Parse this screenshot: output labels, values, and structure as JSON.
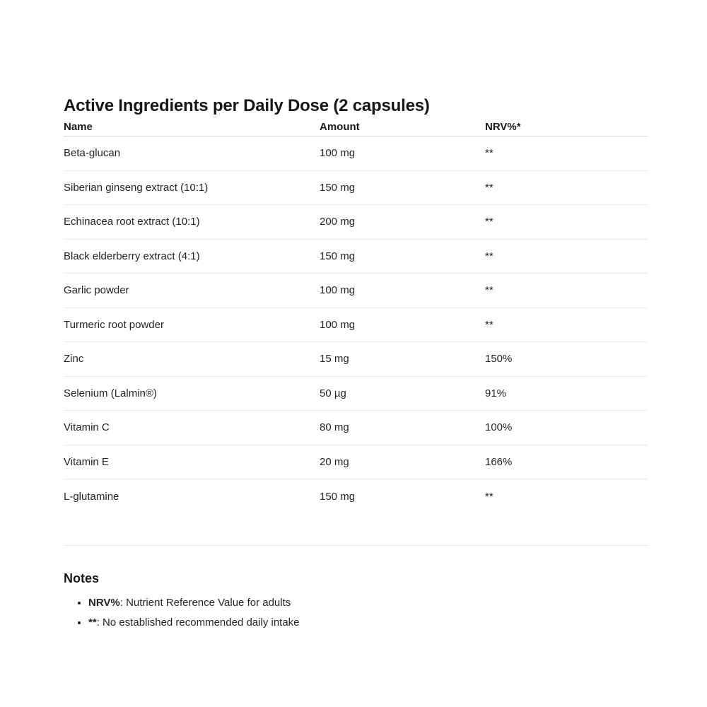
{
  "page": {
    "title": "Active Ingredients per Daily Dose (2 capsules)"
  },
  "table": {
    "headers": [
      "Name",
      "Amount",
      "NRV%*"
    ],
    "rows": [
      {
        "name": "Beta-glucan",
        "amount": "100 mg",
        "nrv": "**"
      },
      {
        "name": "Siberian ginseng extract (10:1)",
        "amount": "150 mg",
        "nrv": "**"
      },
      {
        "name": "Echinacea root extract (10:1)",
        "amount": "200 mg",
        "nrv": "**"
      },
      {
        "name": "Black elderberry extract (4:1)",
        "amount": "150 mg",
        "nrv": "**"
      },
      {
        "name": "Garlic powder",
        "amount": "100 mg",
        "nrv": "**"
      },
      {
        "name": "Turmeric root powder",
        "amount": "100 mg",
        "nrv": "**"
      },
      {
        "name": "Zinc",
        "amount": "15 mg",
        "nrv": "150%"
      },
      {
        "name": "Selenium (Lalmin®)",
        "amount": "50 µg",
        "nrv": "91%"
      },
      {
        "name": "Vitamin C",
        "amount": "80 mg",
        "nrv": "100%"
      },
      {
        "name": "Vitamin E",
        "amount": "20 mg",
        "nrv": "166%"
      },
      {
        "name": "L-glutamine",
        "amount": "150 mg",
        "nrv": "**"
      }
    ]
  },
  "notes": {
    "heading": "Notes",
    "items": [
      {
        "term": "NRV%",
        "text": ": Nutrient Reference Value for adults"
      },
      {
        "term": "**",
        "text": ": No established recommended daily intake"
      }
    ]
  },
  "colors": {
    "text": "#1b1b1b",
    "row_divider": "#e9e9e9",
    "header_divider": "#d9d9d9",
    "background": "#ffffff"
  }
}
